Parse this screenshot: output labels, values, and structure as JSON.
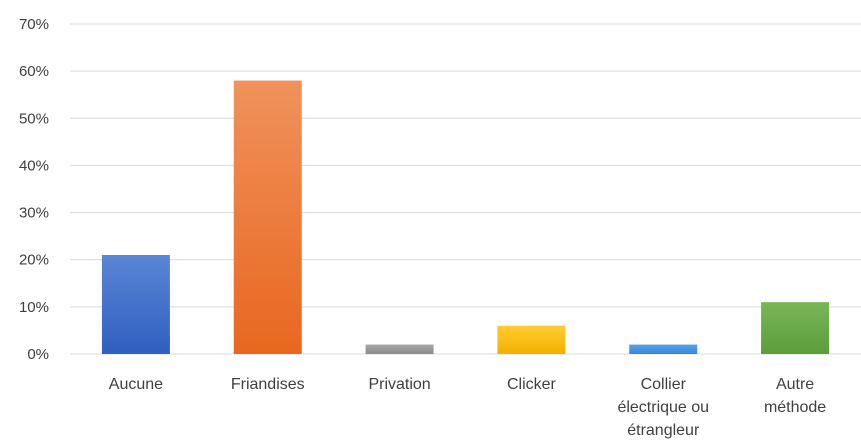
{
  "chart_data": {
    "type": "bar",
    "title": "",
    "xlabel": "",
    "ylabel": "",
    "categories": [
      [
        "Aucune"
      ],
      [
        "Friandises"
      ],
      [
        "Privation"
      ],
      [
        "Clicker"
      ],
      [
        "Collier",
        "électrique ou",
        "étrangleur"
      ],
      [
        "Autre",
        "méthode"
      ]
    ],
    "values": [
      21,
      58,
      2,
      6,
      2,
      11
    ],
    "ylim": [
      0,
      70
    ],
    "yticks": [
      0,
      10,
      20,
      30,
      40,
      50,
      60,
      70
    ],
    "ytick_labels": [
      "0%",
      "10%",
      "20%",
      "30%",
      "40%",
      "50%",
      "60%",
      "70%"
    ],
    "grid": true,
    "legend": "none",
    "colors": [
      {
        "top": "#5b86d6",
        "bottom": "#2f5fc0"
      },
      {
        "top": "#f0925c",
        "bottom": "#e8671f"
      },
      {
        "top": "#a6a6a6",
        "bottom": "#8c8c8c"
      },
      {
        "top": "#ffcc33",
        "bottom": "#f2b100"
      },
      {
        "top": "#5aa2e6",
        "bottom": "#3a86d4"
      },
      {
        "top": "#79b65a",
        "bottom": "#5c9d3b"
      }
    ]
  }
}
